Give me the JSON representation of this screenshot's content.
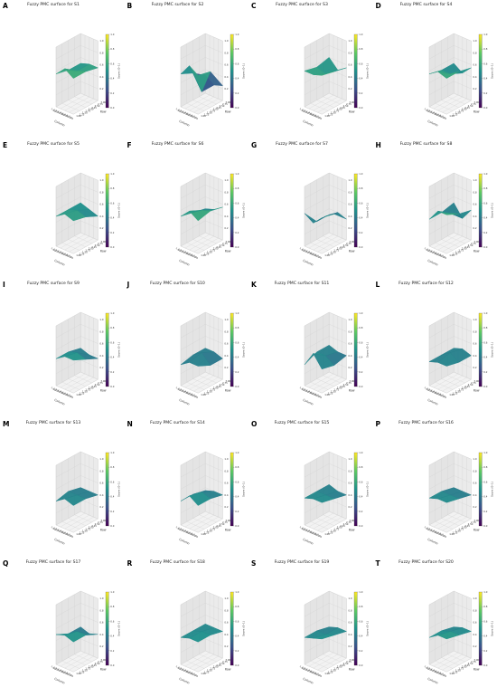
{
  "figure": {
    "panel_letters": [
      "A",
      "B",
      "C",
      "D",
      "E",
      "F",
      "G",
      "H",
      "I",
      "J",
      "K",
      "L",
      "M",
      "N",
      "O",
      "P",
      "Q",
      "R",
      "S",
      "T"
    ]
  },
  "axes_text": {
    "xlabel": "Column",
    "ylabel": "Row",
    "zlabel": "Fuzzy",
    "colorbar_label": "Score (0–1)",
    "colorbar_ticks": [
      "0.0",
      "0.2",
      "0.4",
      "0.6",
      "0.8",
      "1.0"
    ],
    "col_ticks": [
      "1.00",
      "1.25",
      "1.50",
      "1.75",
      "2.00",
      "2.25",
      "2.50",
      "2.75",
      "3.00"
    ],
    "row_ticks": [
      "1.00",
      "1.25",
      "1.50",
      "1.75",
      "2.00",
      "2.25",
      "2.50",
      "2.75",
      "3.00"
    ],
    "z_ticks": [
      "0.2",
      "0.4",
      "0.6",
      "0.8",
      "1.0"
    ]
  },
  "colormap": {
    "name": "viridis",
    "stops": [
      "#440154",
      "#3b528b",
      "#21918c",
      "#5ec962",
      "#fde725"
    ]
  },
  "chart_data": [
    {
      "type": "surface",
      "title": "Fuzzy PMC surface for S1",
      "z": [
        [
          0.55,
          0.7,
          0.6
        ],
        [
          0.5,
          0.55,
          0.6
        ],
        [
          0.5,
          0.55,
          0.55
        ]
      ]
    },
    {
      "type": "surface",
      "title": "Fuzzy PMC surface for S2",
      "z": [
        [
          0.55,
          0.75,
          0.65
        ],
        [
          0.45,
          0.2,
          0.6
        ],
        [
          0.3,
          0.2,
          0.25
        ]
      ]
    },
    {
      "type": "surface",
      "title": "Fuzzy PMC surface for S3",
      "z": [
        [
          0.6,
          0.6,
          0.65
        ],
        [
          0.55,
          0.5,
          0.6
        ],
        [
          0.6,
          0.45,
          0.55
        ]
      ]
    },
    {
      "type": "surface",
      "title": "Fuzzy PMC surface for S4",
      "z": [
        [
          0.55,
          0.65,
          0.6
        ],
        [
          0.5,
          0.5,
          0.6
        ],
        [
          0.5,
          0.4,
          0.55
        ]
      ]
    },
    {
      "type": "surface",
      "title": "Fuzzy PMC surface for S5",
      "z": [
        [
          0.5,
          0.6,
          0.55
        ],
        [
          0.5,
          0.55,
          0.5
        ],
        [
          0.5,
          0.45,
          0.4
        ]
      ]
    },
    {
      "type": "surface",
      "title": "Fuzzy PMC surface for S6",
      "z": [
        [
          0.5,
          0.65,
          0.55
        ],
        [
          0.45,
          0.55,
          0.6
        ],
        [
          0.4,
          0.45,
          0.55
        ]
      ]
    },
    {
      "type": "surface",
      "title": "Fuzzy PMC surface for S7",
      "z": [
        [
          0.55,
          0.45,
          0.6
        ],
        [
          0.3,
          0.45,
          0.55
        ],
        [
          0.3,
          0.4,
          0.35
        ]
      ]
    },
    {
      "type": "surface",
      "title": "Fuzzy PMC surface for S8",
      "z": [
        [
          0.45,
          0.65,
          0.65
        ],
        [
          0.45,
          0.5,
          0.55
        ],
        [
          0.5,
          0.3,
          0.5
        ]
      ]
    },
    {
      "type": "surface",
      "title": "Fuzzy PMC surface for S9",
      "z": [
        [
          0.45,
          0.55,
          0.55
        ],
        [
          0.45,
          0.5,
          0.45
        ],
        [
          0.4,
          0.35,
          0.35
        ]
      ]
    },
    {
      "type": "surface",
      "title": "Fuzzy PMC surface for S10",
      "z": [
        [
          0.35,
          0.45,
          0.45
        ],
        [
          0.4,
          0.5,
          0.35
        ],
        [
          0.4,
          0.4,
          0.35
        ]
      ]
    },
    {
      "type": "surface",
      "title": "Fuzzy PMC surface for S11",
      "z": [
        [
          0.35,
          0.6,
          0.4
        ],
        [
          0.45,
          0.45,
          0.35
        ],
        [
          0.45,
          0.4,
          0.4
        ]
      ]
    },
    {
      "type": "surface",
      "title": "Fuzzy PMC surface for S12",
      "z": [
        [
          0.4,
          0.45,
          0.45
        ],
        [
          0.4,
          0.5,
          0.4
        ],
        [
          0.4,
          0.45,
          0.4
        ]
      ]
    },
    {
      "type": "surface",
      "title": "Fuzzy PMC surface for S13",
      "z": [
        [
          0.4,
          0.5,
          0.45
        ],
        [
          0.45,
          0.45,
          0.45
        ],
        [
          0.4,
          0.4,
          0.4
        ]
      ]
    },
    {
      "type": "surface",
      "title": "Fuzzy PMC surface for S14",
      "z": [
        [
          0.4,
          0.55,
          0.45
        ],
        [
          0.4,
          0.5,
          0.45
        ],
        [
          0.35,
          0.4,
          0.4
        ]
      ]
    },
    {
      "type": "surface",
      "title": "Fuzzy PMC surface for S15",
      "z": [
        [
          0.45,
          0.5,
          0.5
        ],
        [
          0.45,
          0.45,
          0.45
        ],
        [
          0.45,
          0.4,
          0.4
        ]
      ]
    },
    {
      "type": "surface",
      "title": "Fuzzy PMC surface for S16",
      "z": [
        [
          0.45,
          0.5,
          0.5
        ],
        [
          0.45,
          0.45,
          0.45
        ],
        [
          0.4,
          0.4,
          0.4
        ]
      ]
    },
    {
      "type": "surface",
      "title": "Fuzzy PMC surface for S17",
      "z": [
        [
          0.5,
          0.55,
          0.5
        ],
        [
          0.4,
          0.5,
          0.5
        ],
        [
          0.4,
          0.35,
          0.4
        ]
      ]
    },
    {
      "type": "surface",
      "title": "Fuzzy PMC surface for S18",
      "z": [
        [
          0.45,
          0.5,
          0.5
        ],
        [
          0.45,
          0.5,
          0.5
        ],
        [
          0.45,
          0.45,
          0.45
        ]
      ]
    },
    {
      "type": "surface",
      "title": "Fuzzy PMC surface for S19",
      "z": [
        [
          0.45,
          0.5,
          0.55
        ],
        [
          0.45,
          0.45,
          0.5
        ],
        [
          0.4,
          0.45,
          0.45
        ]
      ]
    },
    {
      "type": "surface",
      "title": "Fuzzy PMC surface for S20",
      "z": [
        [
          0.45,
          0.55,
          0.55
        ],
        [
          0.45,
          0.5,
          0.5
        ],
        [
          0.4,
          0.45,
          0.45
        ]
      ]
    }
  ]
}
